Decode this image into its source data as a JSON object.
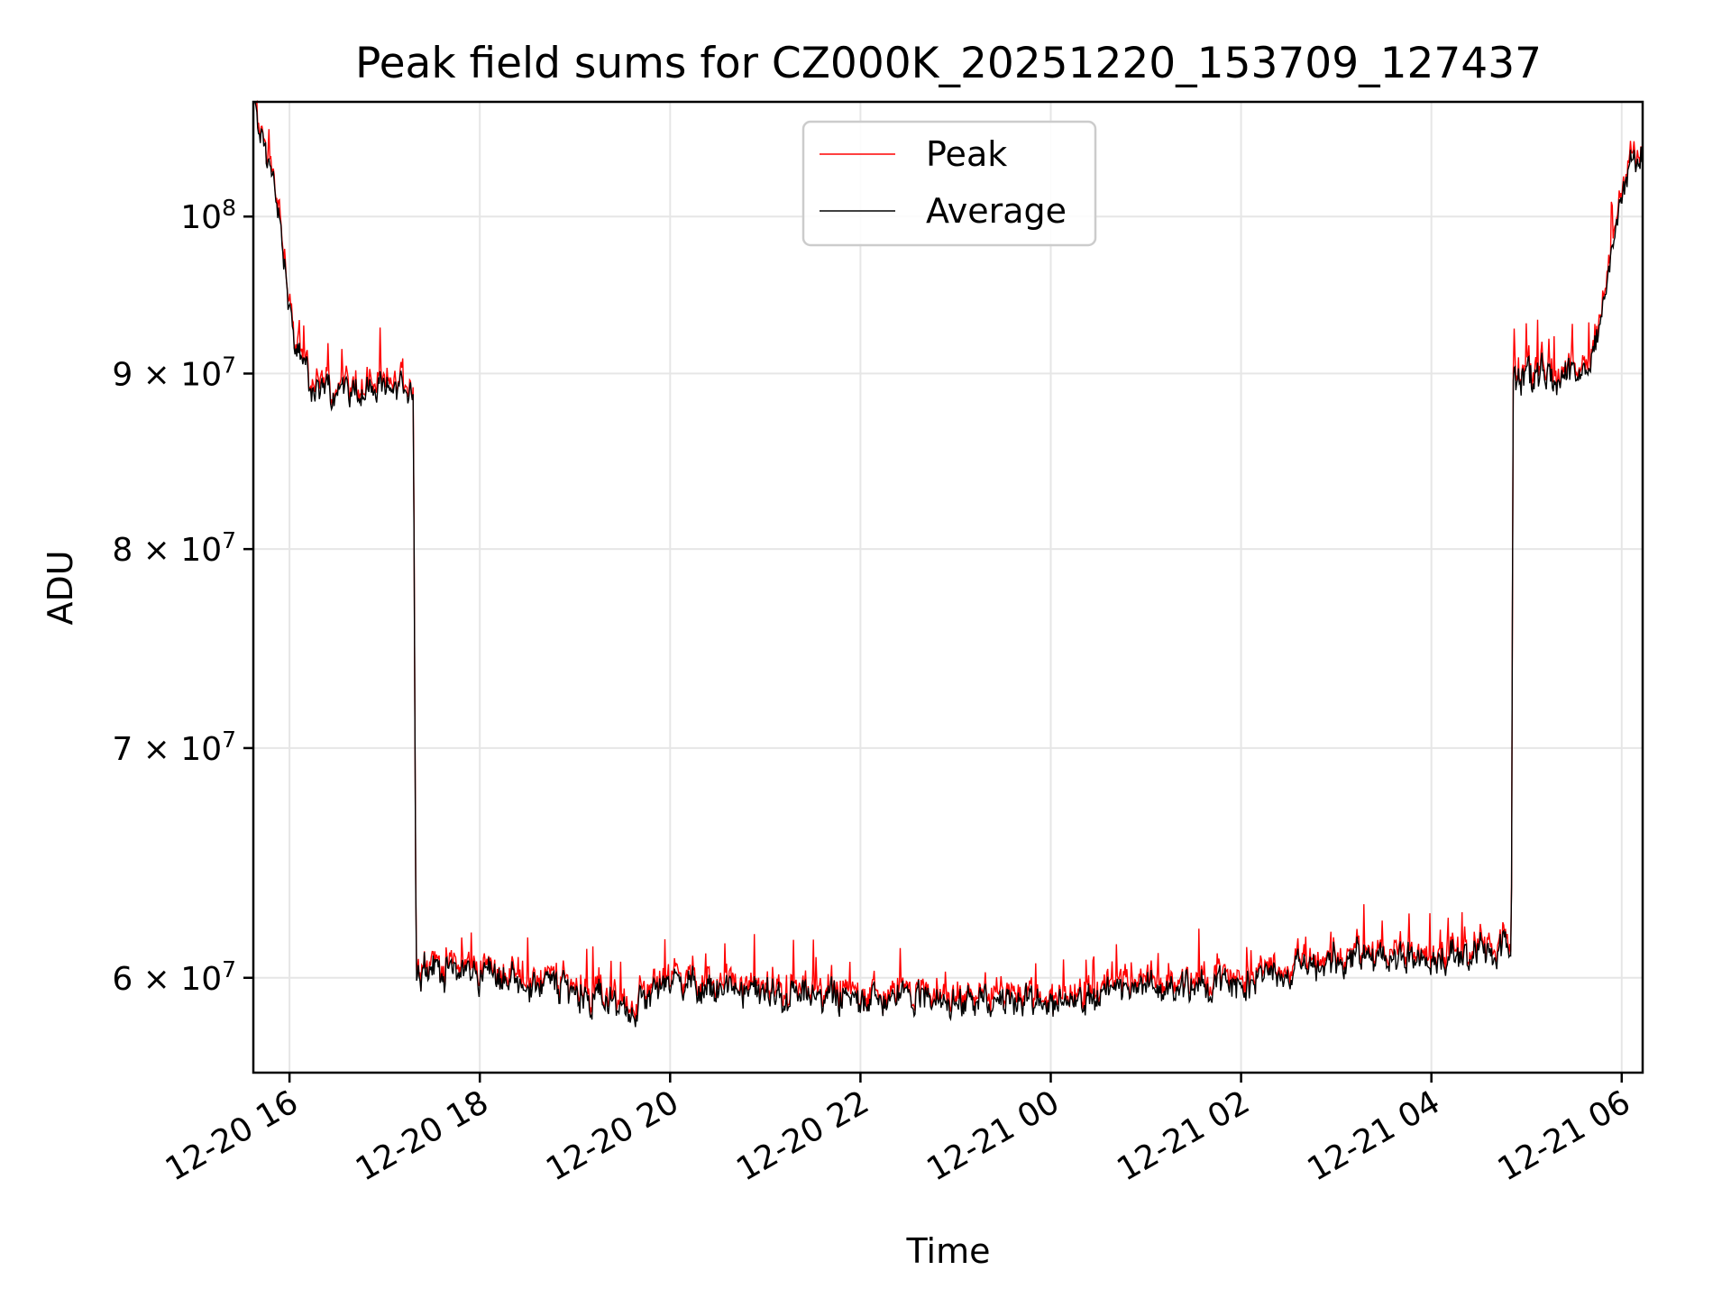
{
  "chart_data": {
    "type": "line",
    "title": "Peak field sums for CZ000K_20251220_153709_127437",
    "xlabel": "Time",
    "ylabel": "ADU",
    "yscale": "log",
    "grid": true,
    "legend_position": "top-center",
    "xlim": [
      15.62,
      30.22
    ],
    "ylim": [
      56300000,
      108000000
    ],
    "x_ticks": [
      {
        "value": 16,
        "label": "12-20 16"
      },
      {
        "value": 18,
        "label": "12-20 18"
      },
      {
        "value": 20,
        "label": "12-20 20"
      },
      {
        "value": 22,
        "label": "12-20 22"
      },
      {
        "value": 24,
        "label": "12-21 00"
      },
      {
        "value": 26,
        "label": "12-21 02"
      },
      {
        "value": 28,
        "label": "12-21 04"
      },
      {
        "value": 30,
        "label": "12-21 06"
      }
    ],
    "y_ticks": [
      {
        "value": 60000000,
        "mantissa": "6",
        "label": "6 × 10^7"
      },
      {
        "value": 70000000,
        "mantissa": "7",
        "label": "7 × 10^7"
      },
      {
        "value": 80000000,
        "mantissa": "8",
        "label": "8 × 10^7"
      },
      {
        "value": 90000000,
        "mantissa": "9",
        "label": "9 × 10^7"
      },
      {
        "value": 100000000,
        "mantissa": "",
        "label": "10^8"
      }
    ],
    "series": [
      {
        "name": "Peak",
        "color": "#ff0000"
      },
      {
        "name": "Average",
        "color": "#000000"
      }
    ],
    "profile": {
      "x": [
        15.62,
        15.75,
        15.85,
        15.95,
        16.0,
        16.05,
        16.1,
        16.2,
        16.3,
        16.5,
        17.0,
        17.3,
        17.33,
        17.4,
        18.0,
        19.0,
        19.6,
        20.0,
        21.0,
        22.0,
        23.0,
        24.0,
        25.0,
        26.0,
        27.0,
        28.0,
        28.7,
        28.84,
        28.86,
        29.0,
        29.5,
        29.7,
        29.85,
        30.0,
        30.1,
        30.22
      ],
      "y": [
        108000000,
        104500000,
        101500000,
        96500000,
        94000000,
        92000000,
        90500000,
        89500000,
        89000000,
        88900000,
        88900000,
        88900000,
        60500000,
        60500000,
        60200000,
        59500000,
        58800000,
        59900000,
        59300000,
        59200000,
        59100000,
        59000000,
        59700000,
        59800000,
        60700000,
        60900000,
        61000000,
        61000000,
        89500000,
        89800000,
        89800000,
        91000000,
        96000000,
        101000000,
        103500000,
        104000000
      ]
    },
    "noise_amplitude_fraction": 0.012,
    "peak_offset_fraction": 0.008
  }
}
